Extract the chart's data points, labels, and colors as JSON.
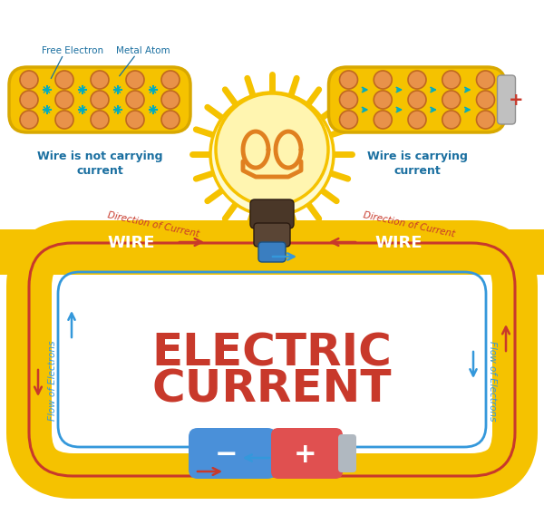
{
  "title_line1": "ELECTRIC",
  "title_line2": "CURRENT",
  "title_color": "#C8392B",
  "bg_color": "#FFFFFF",
  "wire_color": "#F5C200",
  "wire_border": "#E0A800",
  "electron_flow_color": "#3498DB",
  "current_direction_color": "#C8392B",
  "wire_label_color": "#FFFFFF",
  "wire_label": "WIRE",
  "left_caption_line1": "Wire is not carrying",
  "left_caption_line2": "current",
  "right_caption_line1": "Wire is carrying",
  "right_caption_line2": "current",
  "free_electron_label": "Free Electron",
  "metal_atom_label": "Metal Atom",
  "direction_of_current": "Direction of Current",
  "flow_of_electrons": "Flow of Electrons",
  "battery_blue": "#4A90D9",
  "battery_red": "#E05050",
  "battery_gray": "#B0B8C0",
  "bulb_fill": "#FFF5B0",
  "bulb_glow": "#FDEEA0",
  "bulb_outer": "#F5C200",
  "bulb_ray": "#F5C200",
  "filament_color": "#E08020",
  "socket_dark": "#4A3728",
  "socket_mid": "#5A4535",
  "socket_blue": "#3A7EC0",
  "atom_fill": "#E8924A",
  "atom_edge": "#C06820",
  "electron_color": "#00ACC1",
  "caption_color": "#1A6FA0"
}
